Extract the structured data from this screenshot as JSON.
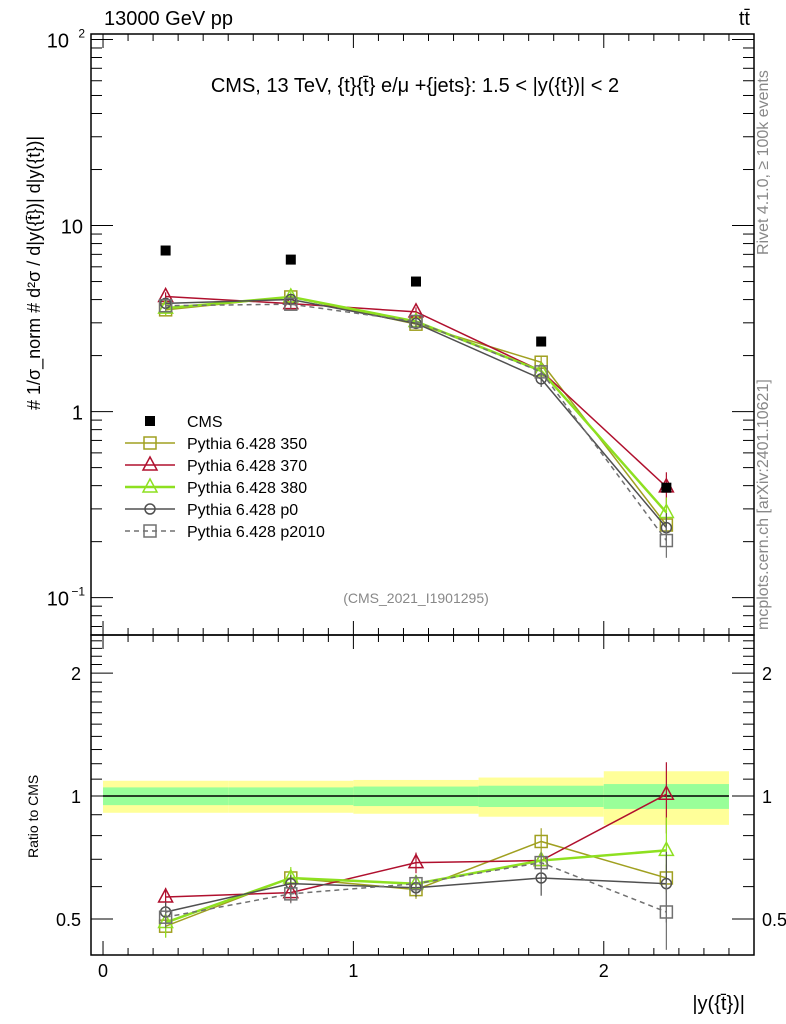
{
  "header": {
    "left": "13000 GeV pp",
    "right": "tt̄"
  },
  "side_text": {
    "rivet": "Rivet 4.1.0, ≥ 100k events",
    "mcplots": "mcplots.cern.ch [arXiv:2401.10621]"
  },
  "chart_data": {
    "type": "scatter",
    "title": "CMS, 13 TeV, {t}{t̄} e/μ +{jets}: 1.5 < |y({t})| < 2",
    "analysis_id": "(CMS_2021_I1901295)",
    "xlabel": "|y({t̄})|",
    "ylabel": "# 1/σ_norm # d²σ / d|y({t̄})| d|y({t})|",
    "ratio_ylabel": "Ratio to CMS",
    "xlim": [
      -0.048,
      2.6
    ],
    "ylim": [
      0.063,
      107
    ],
    "yscale": "log",
    "ratio_ylim": [
      0.408,
      2.48
    ],
    "ratio_yscale": "log",
    "x_ticks": [
      "0",
      "1",
      "2"
    ],
    "x_tick_values": [
      0,
      1,
      2
    ],
    "y_ticks": [
      {
        "v": 100,
        "base": "10",
        "exp": "2"
      },
      {
        "v": 10,
        "base": "10",
        "exp": ""
      },
      {
        "v": 1,
        "base": "1",
        "exp": ""
      },
      {
        "v": 0.1,
        "base": "10",
        "exp": "−1"
      }
    ],
    "ratio_ticks": [
      {
        "v": 2,
        "label": "2"
      },
      {
        "v": 1,
        "label": "1"
      },
      {
        "v": 0.5,
        "label": "0.5"
      }
    ],
    "bins": [
      [
        0,
        0.5
      ],
      [
        0.5,
        1
      ],
      [
        1,
        1.5
      ],
      [
        1.5,
        2
      ],
      [
        2,
        2.5
      ]
    ],
    "x": [
      0.25,
      0.75,
      1.25,
      1.75,
      2.25
    ],
    "data": {
      "name": "CMS",
      "values": [
        7.34,
        6.56,
        5.0,
        2.38,
        0.39
      ],
      "band_inner": [
        0.05,
        0.05,
        0.055,
        0.06,
        0.07
      ],
      "band_outer": [
        0.09,
        0.09,
        0.095,
        0.11,
        0.15
      ]
    },
    "series": [
      {
        "name": "Pythia 6.428 350",
        "color": "#a0a020",
        "marker": "square",
        "dash": false,
        "width": 1.5,
        "ratio": [
          0.48,
          0.63,
          0.59,
          0.774,
          0.63
        ],
        "err": [
          0.03,
          0.03,
          0.03,
          0.06,
          0.05
        ]
      },
      {
        "name": "Pythia 6.428 370",
        "color": "#b0102e",
        "marker": "triangle",
        "dash": false,
        "width": 1.5,
        "ratio": [
          0.566,
          0.58,
          0.687,
          0.695,
          1.01
        ],
        "err": [
          0.03,
          0.03,
          0.04,
          0.03,
          0.2
        ]
      },
      {
        "name": "Pythia 6.428 380",
        "color": "#8ee020",
        "marker": "triangle",
        "dash": false,
        "width": 2.5,
        "ratio": [
          0.49,
          0.63,
          0.61,
          0.695,
          0.736
        ],
        "err": [
          0.04,
          0.04,
          0.03,
          0.03,
          0.15
        ]
      },
      {
        "name": "Pythia 6.428 p0",
        "color": "#505050",
        "marker": "circle",
        "dash": false,
        "width": 1.5,
        "ratio": [
          0.52,
          0.61,
          0.596,
          0.63,
          0.61
        ],
        "err": [
          0.03,
          0.03,
          0.03,
          0.06,
          0.12
        ]
      },
      {
        "name": "Pythia 6.428 p2010",
        "color": "#707070",
        "marker": "square",
        "dash": true,
        "width": 1.5,
        "ratio": [
          0.505,
          0.576,
          0.61,
          0.687,
          0.52
        ],
        "err": [
          0.03,
          0.03,
          0.03,
          0.04,
          0.1
        ]
      }
    ],
    "legend_position": "middle-left"
  }
}
